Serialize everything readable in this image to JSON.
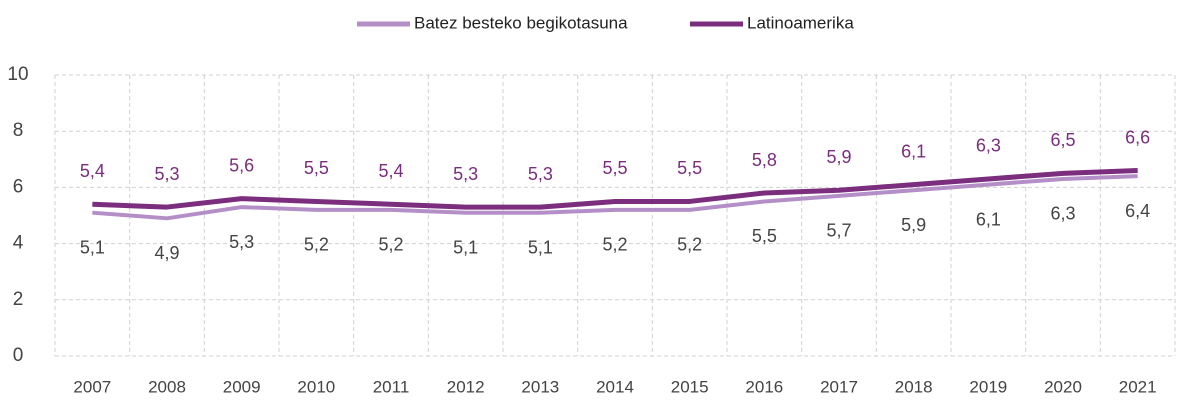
{
  "chart_data": {
    "type": "line",
    "categories": [
      "2007",
      "2008",
      "2009",
      "2010",
      "2011",
      "2012",
      "2013",
      "2014",
      "2015",
      "2016",
      "2017",
      "2018",
      "2019",
      "2020",
      "2021"
    ],
    "series": [
      {
        "name": "Batez besteko begikotasuna",
        "color": "#b48fc7",
        "values": [
          5.1,
          4.9,
          5.3,
          5.2,
          5.2,
          5.1,
          5.1,
          5.2,
          5.2,
          5.5,
          5.7,
          5.9,
          6.1,
          6.3,
          6.4
        ],
        "value_labels": [
          "5,1",
          "4,9",
          "5,3",
          "5,2",
          "5,2",
          "5,1",
          "5,1",
          "5,2",
          "5,2",
          "5,5",
          "5,7",
          "5,9",
          "6,1",
          "6,3",
          "6,4"
        ]
      },
      {
        "name": "Latinoamerika",
        "color": "#7b2d7e",
        "values": [
          5.4,
          5.3,
          5.6,
          5.5,
          5.4,
          5.3,
          5.3,
          5.5,
          5.5,
          5.8,
          5.9,
          6.1,
          6.3,
          6.5,
          6.6
        ],
        "value_labels": [
          "5,4",
          "5,3",
          "5,6",
          "5,5",
          "5,4",
          "5,3",
          "5,3",
          "5,5",
          "5,5",
          "5,8",
          "5,9",
          "6,1",
          "6,3",
          "6,5",
          "6,6"
        ]
      }
    ],
    "ylim": [
      0,
      10
    ],
    "yticks": [
      0,
      2,
      4,
      6,
      8,
      10
    ],
    "grid": true,
    "legend": "top"
  }
}
